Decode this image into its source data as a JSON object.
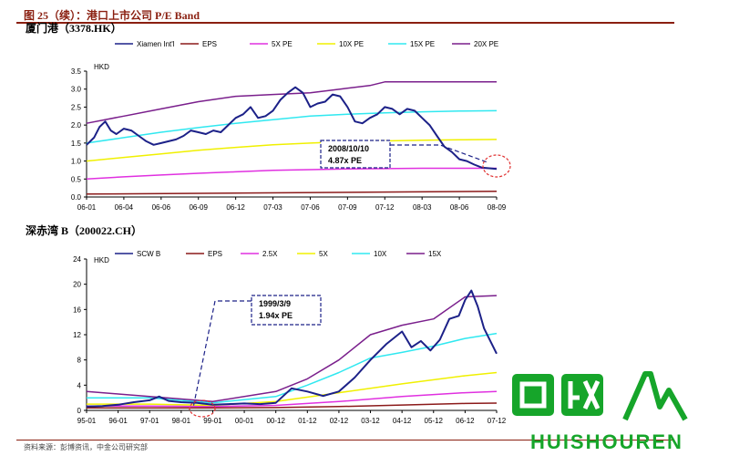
{
  "header": {
    "title": "图 25（续）：港口上市公司 P/E Band"
  },
  "footer": {
    "source": "资料来源：彭博资讯，中金公司研究部"
  },
  "watermark": {
    "text": "HUISHOUREN"
  },
  "colors": {
    "header_red": "#8a1f10",
    "price": "#1c2188",
    "eps": "#8b1a1a",
    "pe_low": "#e030e0",
    "pe_mid": "#f0f000",
    "pe_high": "#30e8f0",
    "pe_top": "#7a1f8c",
    "annotation": "#1c2188",
    "highlight": "#e03030",
    "watermark_green": "#16a52a"
  },
  "charts": [
    {
      "label": "厦门港（3378.HK）"
    },
    {
      "label": "深赤湾 B（200022.CH）"
    }
  ],
  "chart_data": [
    {
      "type": "line",
      "ylabel": "HKD",
      "ylim": [
        0,
        3.5
      ],
      "yticks": [
        "0.0",
        "0.5",
        "1.0",
        "1.5",
        "2.0",
        "2.5",
        "3.0",
        "3.5"
      ],
      "xticks": [
        "06-01",
        "06-04",
        "06-06",
        "06-09",
        "06-12",
        "07-03",
        "07-06",
        "07-09",
        "07-12",
        "08-03",
        "08-06",
        "08-09"
      ],
      "x_range": [
        0,
        11
      ],
      "legend": "top",
      "grid": false,
      "annotation": {
        "lines": [
          "2008/10/10",
          "4.87x PE"
        ]
      },
      "series": [
        {
          "name": "Xiamen Int'l",
          "role": "price",
          "x": [
            0,
            0.2,
            0.35,
            0.5,
            0.65,
            0.8,
            1.0,
            1.2,
            1.4,
            1.6,
            1.8,
            2.0,
            2.2,
            2.4,
            2.6,
            2.8,
            3.0,
            3.2,
            3.4,
            3.6,
            3.8,
            4.0,
            4.2,
            4.4,
            4.6,
            4.8,
            5.0,
            5.2,
            5.4,
            5.6,
            5.8,
            6.0,
            6.2,
            6.4,
            6.6,
            6.8,
            7.0,
            7.2,
            7.4,
            7.6,
            7.8,
            8.0,
            8.2,
            8.4,
            8.6,
            8.8,
            9.0,
            9.2,
            9.4,
            9.6,
            9.8,
            10.0,
            10.2,
            10.4,
            10.6,
            10.8,
            11.0
          ],
          "values": [
            1.45,
            1.65,
            1.95,
            2.1,
            1.85,
            1.75,
            1.9,
            1.85,
            1.7,
            1.55,
            1.45,
            1.5,
            1.55,
            1.6,
            1.7,
            1.85,
            1.8,
            1.75,
            1.85,
            1.8,
            2.0,
            2.2,
            2.3,
            2.5,
            2.2,
            2.25,
            2.4,
            2.7,
            2.9,
            3.05,
            2.9,
            2.5,
            2.6,
            2.65,
            2.85,
            2.8,
            2.5,
            2.1,
            2.05,
            2.2,
            2.3,
            2.5,
            2.45,
            2.3,
            2.45,
            2.4,
            2.2,
            2.0,
            1.7,
            1.4,
            1.25,
            1.05,
            1.0,
            0.9,
            0.82,
            0.8,
            0.78
          ]
        },
        {
          "name": "EPS",
          "role": "eps",
          "x": [
            0,
            11
          ],
          "values": [
            0.08,
            0.16
          ]
        },
        {
          "name": "5X PE",
          "role": "pe",
          "x": [
            0,
            1,
            2,
            3,
            4,
            5,
            6,
            7,
            8,
            9,
            10,
            11
          ],
          "values": [
            0.5,
            0.56,
            0.61,
            0.66,
            0.7,
            0.74,
            0.76,
            0.78,
            0.79,
            0.8,
            0.8,
            0.8
          ]
        },
        {
          "name": "10X PE",
          "role": "pe",
          "x": [
            0,
            1,
            2,
            3,
            4,
            5,
            6,
            7,
            8,
            9,
            10,
            11
          ],
          "values": [
            1.0,
            1.1,
            1.2,
            1.3,
            1.38,
            1.45,
            1.5,
            1.54,
            1.56,
            1.58,
            1.59,
            1.6
          ]
        },
        {
          "name": "15X PE",
          "role": "pe",
          "x": [
            0,
            1,
            2,
            3,
            4,
            5,
            6,
            7,
            8,
            9,
            10,
            11
          ],
          "values": [
            1.5,
            1.65,
            1.8,
            1.93,
            2.05,
            2.15,
            2.25,
            2.3,
            2.34,
            2.37,
            2.39,
            2.4
          ]
        },
        {
          "name": "20X PE",
          "role": "pe",
          "x": [
            0,
            1,
            2,
            3,
            4,
            5,
            6,
            6.8,
            7.6,
            8,
            9,
            10,
            11
          ],
          "values": [
            2.05,
            2.25,
            2.45,
            2.65,
            2.8,
            2.85,
            2.9,
            3.0,
            3.1,
            3.2,
            3.2,
            3.2,
            3.2
          ]
        }
      ]
    },
    {
      "type": "line",
      "ylabel": "HKD",
      "ylim": [
        0,
        24
      ],
      "yticks": [
        "0",
        "4",
        "8",
        "12",
        "16",
        "20",
        "24"
      ],
      "xticks": [
        "95-01",
        "96-01",
        "97-01",
        "98-01",
        "99-01",
        "00-01",
        "00-12",
        "01-12",
        "02-12",
        "03-12",
        "04-12",
        "05-12",
        "06-12",
        "07-12"
      ],
      "x_range": [
        0,
        13
      ],
      "legend": "top",
      "grid": false,
      "annotation": {
        "lines": [
          "1999/3/9",
          "1.94x PE"
        ]
      },
      "series": [
        {
          "name": "SCW B",
          "role": "price",
          "x": [
            0,
            0.5,
            1.0,
            1.5,
            2.0,
            2.3,
            2.6,
            3.0,
            3.5,
            4.0,
            4.5,
            5.0,
            5.5,
            6.0,
            6.5,
            7.0,
            7.5,
            8.0,
            8.5,
            9.0,
            9.5,
            10.0,
            10.3,
            10.6,
            10.9,
            11.2,
            11.5,
            11.8,
            12.0,
            12.2,
            12.4,
            12.6,
            12.8,
            13.0
          ],
          "values": [
            0.6,
            0.7,
            0.9,
            1.3,
            1.6,
            2.2,
            1.5,
            1.3,
            1.2,
            0.9,
            1.0,
            1.1,
            1.0,
            1.2,
            3.5,
            3.0,
            2.3,
            3.0,
            5.2,
            8.0,
            10.5,
            12.5,
            10.0,
            11.0,
            9.5,
            11.2,
            14.5,
            15.0,
            17.5,
            19.0,
            16.5,
            13.0,
            11.0,
            9.0
          ]
        },
        {
          "name": "EPS",
          "role": "eps",
          "x": [
            0,
            2,
            4,
            6,
            8,
            10,
            12,
            13
          ],
          "values": [
            0.4,
            0.4,
            0.4,
            0.45,
            0.6,
            0.85,
            1.1,
            1.15
          ]
        },
        {
          "name": "2.5X",
          "role": "pe",
          "x": [
            0,
            2,
            4,
            6,
            8,
            10,
            12,
            13
          ],
          "values": [
            0.7,
            0.7,
            0.6,
            0.8,
            1.4,
            2.2,
            2.8,
            3.0
          ]
        },
        {
          "name": "5X",
          "role": "pe",
          "x": [
            0,
            2,
            4,
            6,
            8,
            10,
            12,
            13
          ],
          "values": [
            1.0,
            1.0,
            0.8,
            1.4,
            2.8,
            4.2,
            5.5,
            6.0
          ]
        },
        {
          "name": "10X",
          "role": "pe",
          "x": [
            0,
            2,
            4,
            6,
            7,
            8,
            9,
            10,
            11,
            12,
            13
          ],
          "values": [
            2.0,
            2.0,
            1.2,
            2.2,
            4.0,
            6.0,
            8.3,
            9.2,
            10.2,
            11.4,
            12.2
          ]
        },
        {
          "name": "15X",
          "role": "pe",
          "x": [
            0,
            1,
            2,
            4,
            6,
            7,
            8,
            9,
            10,
            11,
            12,
            13
          ],
          "values": [
            3.0,
            2.6,
            2.2,
            1.4,
            3.0,
            5.0,
            8.0,
            12.0,
            13.5,
            14.5,
            18.0,
            18.2
          ]
        }
      ]
    }
  ]
}
